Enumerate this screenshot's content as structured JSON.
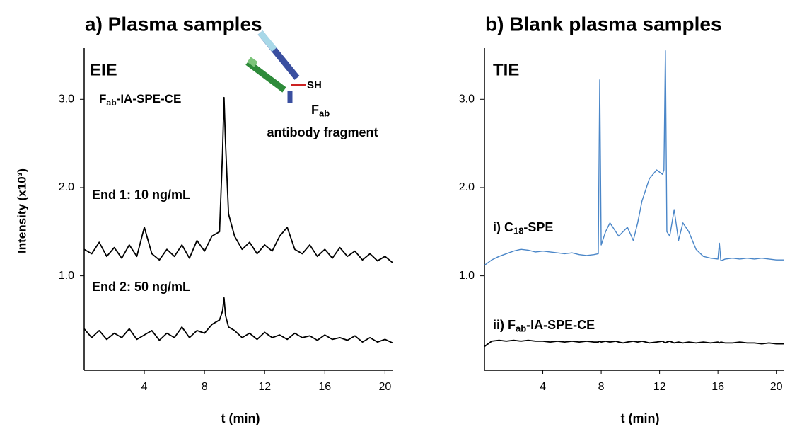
{
  "chart_data": [
    {
      "type": "line",
      "title": "a) Plasma samples",
      "panel_label": "EIE",
      "method_label": [
        "F",
        "ab",
        "-IA-SPE-CE"
      ],
      "x_label": "t (min)",
      "y_label": "Intensity  (x10³)",
      "inset": {
        "group": "SH",
        "fragment": [
          "F",
          "ab"
        ],
        "caption": "antibody fragment"
      },
      "x": [
        0,
        0.5,
        1,
        1.5,
        2,
        2.5,
        3,
        3.5,
        4,
        4.5,
        5,
        5.5,
        6,
        6.5,
        7,
        7.5,
        8,
        8.5,
        9,
        9.2,
        9.3,
        9.4,
        9.6,
        10,
        10.5,
        11,
        11.5,
        12,
        12.5,
        13,
        13.5,
        14,
        14.5,
        15,
        15.5,
        16,
        16.5,
        17,
        17.5,
        18,
        18.5,
        19,
        19.5,
        20,
        20.5
      ],
      "series": [
        {
          "name": [
            "End 1: 10 ng/mL"
          ],
          "color": "#000000",
          "values": [
            1.3,
            1.25,
            1.38,
            1.22,
            1.32,
            1.2,
            1.35,
            1.22,
            1.55,
            1.25,
            1.18,
            1.3,
            1.22,
            1.35,
            1.2,
            1.4,
            1.28,
            1.45,
            1.5,
            2.4,
            3.02,
            2.5,
            1.7,
            1.45,
            1.3,
            1.38,
            1.25,
            1.35,
            1.28,
            1.45,
            1.55,
            1.3,
            1.25,
            1.35,
            1.22,
            1.3,
            1.2,
            1.32,
            1.22,
            1.28,
            1.18,
            1.25,
            1.17,
            1.22,
            1.15
          ]
        },
        {
          "name": [
            "End 2: 50 ng/mL"
          ],
          "color": "#000000",
          "values": [
            0.4,
            0.3,
            0.38,
            0.28,
            0.35,
            0.3,
            0.4,
            0.28,
            0.33,
            0.38,
            0.27,
            0.35,
            0.3,
            0.42,
            0.3,
            0.38,
            0.35,
            0.45,
            0.5,
            0.6,
            0.75,
            0.55,
            0.42,
            0.38,
            0.3,
            0.35,
            0.28,
            0.36,
            0.3,
            0.33,
            0.28,
            0.35,
            0.3,
            0.32,
            0.27,
            0.33,
            0.28,
            0.3,
            0.27,
            0.32,
            0.25,
            0.3,
            0.25,
            0.28,
            0.24
          ]
        }
      ],
      "xlim": [
        0,
        20.5
      ],
      "ylim": [
        -0.07,
        3.58
      ],
      "xticks": [
        4,
        8,
        12,
        16,
        20
      ],
      "yticks": [
        {
          "value": 1,
          "label": "1.0"
        },
        {
          "value": 2,
          "label": "2.0"
        },
        {
          "value": 3,
          "label": "3.0"
        }
      ]
    },
    {
      "type": "line",
      "title": "b) Blank plasma samples",
      "panel_label": "TIE",
      "x_label": "t (min)",
      "x": [
        0,
        0.5,
        1,
        1.5,
        2,
        2.5,
        3,
        3.5,
        4,
        4.5,
        5,
        5.5,
        6,
        6.5,
        7,
        7.5,
        7.8,
        7.9,
        8,
        8.3,
        8.6,
        9,
        9.2,
        9.5,
        9.8,
        10.2,
        10.5,
        10.8,
        11.3,
        11.8,
        12.2,
        12.3,
        12.4,
        12.5,
        12.7,
        13,
        13.3,
        13.6,
        14,
        14.5,
        15,
        15.5,
        16,
        16.1,
        16.2,
        16.5,
        17,
        17.5,
        18,
        18.5,
        19,
        19.5,
        20,
        20.5
      ],
      "series": [
        {
          "name": [
            "i) C",
            "18",
            "-SPE"
          ],
          "color": "#4a86c8",
          "values": [
            1.12,
            1.18,
            1.22,
            1.25,
            1.28,
            1.3,
            1.29,
            1.27,
            1.28,
            1.27,
            1.26,
            1.25,
            1.26,
            1.24,
            1.23,
            1.24,
            1.25,
            3.22,
            1.35,
            1.5,
            1.6,
            1.5,
            1.45,
            1.5,
            1.55,
            1.4,
            1.6,
            1.85,
            2.1,
            2.2,
            2.15,
            2.2,
            3.55,
            1.5,
            1.45,
            1.75,
            1.4,
            1.6,
            1.5,
            1.3,
            1.22,
            1.2,
            1.19,
            1.37,
            1.17,
            1.19,
            1.2,
            1.19,
            1.2,
            1.19,
            1.2,
            1.19,
            1.18,
            1.18
          ]
        },
        {
          "name": [
            "ii) F",
            "ab",
            "-IA-SPE-CE"
          ],
          "color": "#000000",
          "values": [
            0.2,
            0.26,
            0.27,
            0.26,
            0.27,
            0.26,
            0.27,
            0.26,
            0.26,
            0.25,
            0.26,
            0.25,
            0.26,
            0.25,
            0.26,
            0.25,
            0.25,
            0.26,
            0.25,
            0.26,
            0.25,
            0.26,
            0.25,
            0.24,
            0.25,
            0.26,
            0.25,
            0.26,
            0.24,
            0.25,
            0.26,
            0.25,
            0.24,
            0.25,
            0.26,
            0.24,
            0.25,
            0.24,
            0.25,
            0.24,
            0.25,
            0.24,
            0.25,
            0.24,
            0.25,
            0.24,
            0.24,
            0.25,
            0.24,
            0.24,
            0.23,
            0.24,
            0.23,
            0.23
          ]
        }
      ],
      "xlim": [
        0,
        20.5
      ],
      "ylim": [
        -0.07,
        3.58
      ],
      "xticks": [
        4,
        8,
        12,
        16,
        20
      ],
      "yticks": [
        {
          "value": 1,
          "label": "1.0"
        },
        {
          "value": 2,
          "label": "2.0"
        },
        {
          "value": 3,
          "label": "3.0"
        }
      ]
    }
  ]
}
